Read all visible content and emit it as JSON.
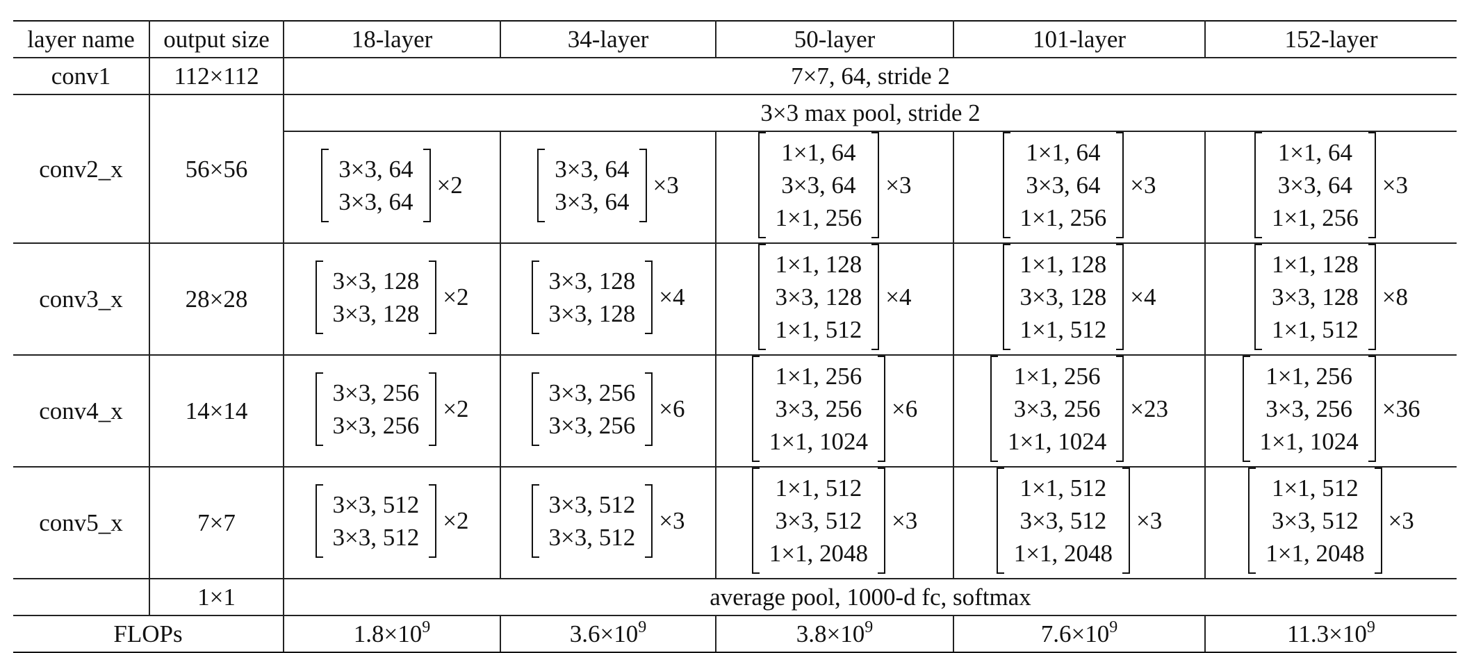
{
  "headers": [
    "layer name",
    "output size",
    "18-layer",
    "34-layer",
    "50-layer",
    "101-layer",
    "152-layer"
  ],
  "conv1": {
    "name": "conv1",
    "size": "112×112",
    "spec": "7×7, 64, stride 2"
  },
  "pool": {
    "spec": "3×3 max pool, stride 2"
  },
  "stages": [
    {
      "name": "conv2_x",
      "size": "56×56",
      "cells": [
        {
          "lines": [
            "3×3, 64",
            "3×3, 64"
          ],
          "rep": "×2"
        },
        {
          "lines": [
            "3×3, 64",
            "3×3, 64"
          ],
          "rep": "×3"
        },
        {
          "lines": [
            "1×1, 64",
            "3×3, 64",
            "1×1, 256"
          ],
          "rep": "×3"
        },
        {
          "lines": [
            "1×1, 64",
            "3×3, 64",
            "1×1, 256"
          ],
          "rep": "×3"
        },
        {
          "lines": [
            "1×1, 64",
            "3×3, 64",
            "1×1, 256"
          ],
          "rep": "×3"
        }
      ]
    },
    {
      "name": "conv3_x",
      "size": "28×28",
      "cells": [
        {
          "lines": [
            "3×3, 128",
            "3×3, 128"
          ],
          "rep": "×2"
        },
        {
          "lines": [
            "3×3, 128",
            "3×3, 128"
          ],
          "rep": "×4"
        },
        {
          "lines": [
            "1×1, 128",
            "3×3, 128",
            "1×1, 512"
          ],
          "rep": "×4"
        },
        {
          "lines": [
            "1×1, 128",
            "3×3, 128",
            "1×1, 512"
          ],
          "rep": "×4"
        },
        {
          "lines": [
            "1×1, 128",
            "3×3, 128",
            "1×1, 512"
          ],
          "rep": "×8"
        }
      ]
    },
    {
      "name": "conv4_x",
      "size": "14×14",
      "cells": [
        {
          "lines": [
            "3×3, 256",
            "3×3, 256"
          ],
          "rep": "×2"
        },
        {
          "lines": [
            "3×3, 256",
            "3×3, 256"
          ],
          "rep": "×6"
        },
        {
          "lines": [
            "1×1, 256",
            "3×3, 256",
            "1×1, 1024"
          ],
          "rep": "×6"
        },
        {
          "lines": [
            "1×1, 256",
            "3×3, 256",
            "1×1, 1024"
          ],
          "rep": "×23"
        },
        {
          "lines": [
            "1×1, 256",
            "3×3, 256",
            "1×1, 1024"
          ],
          "rep": "×36"
        }
      ]
    },
    {
      "name": "conv5_x",
      "size": "7×7",
      "cells": [
        {
          "lines": [
            "3×3, 512",
            "3×3, 512"
          ],
          "rep": "×2"
        },
        {
          "lines": [
            "3×3, 512",
            "3×3, 512"
          ],
          "rep": "×3"
        },
        {
          "lines": [
            "1×1, 512",
            "3×3, 512",
            "1×1, 2048"
          ],
          "rep": "×3"
        },
        {
          "lines": [
            "1×1, 512",
            "3×3, 512",
            "1×1, 2048"
          ],
          "rep": "×3"
        },
        {
          "lines": [
            "1×1, 512",
            "3×3, 512",
            "1×1, 2048"
          ],
          "rep": "×3"
        }
      ]
    }
  ],
  "avg": {
    "size": "1×1",
    "spec": "average pool, 1000-d fc, softmax"
  },
  "flops": {
    "label": "FLOPs",
    "values": [
      {
        "mant": "1.8×10",
        "exp": "9"
      },
      {
        "mant": "3.6×10",
        "exp": "9"
      },
      {
        "mant": "3.8×10",
        "exp": "9"
      },
      {
        "mant": "7.6×10",
        "exp": "9"
      },
      {
        "mant": "11.3×10",
        "exp": "9"
      }
    ]
  }
}
